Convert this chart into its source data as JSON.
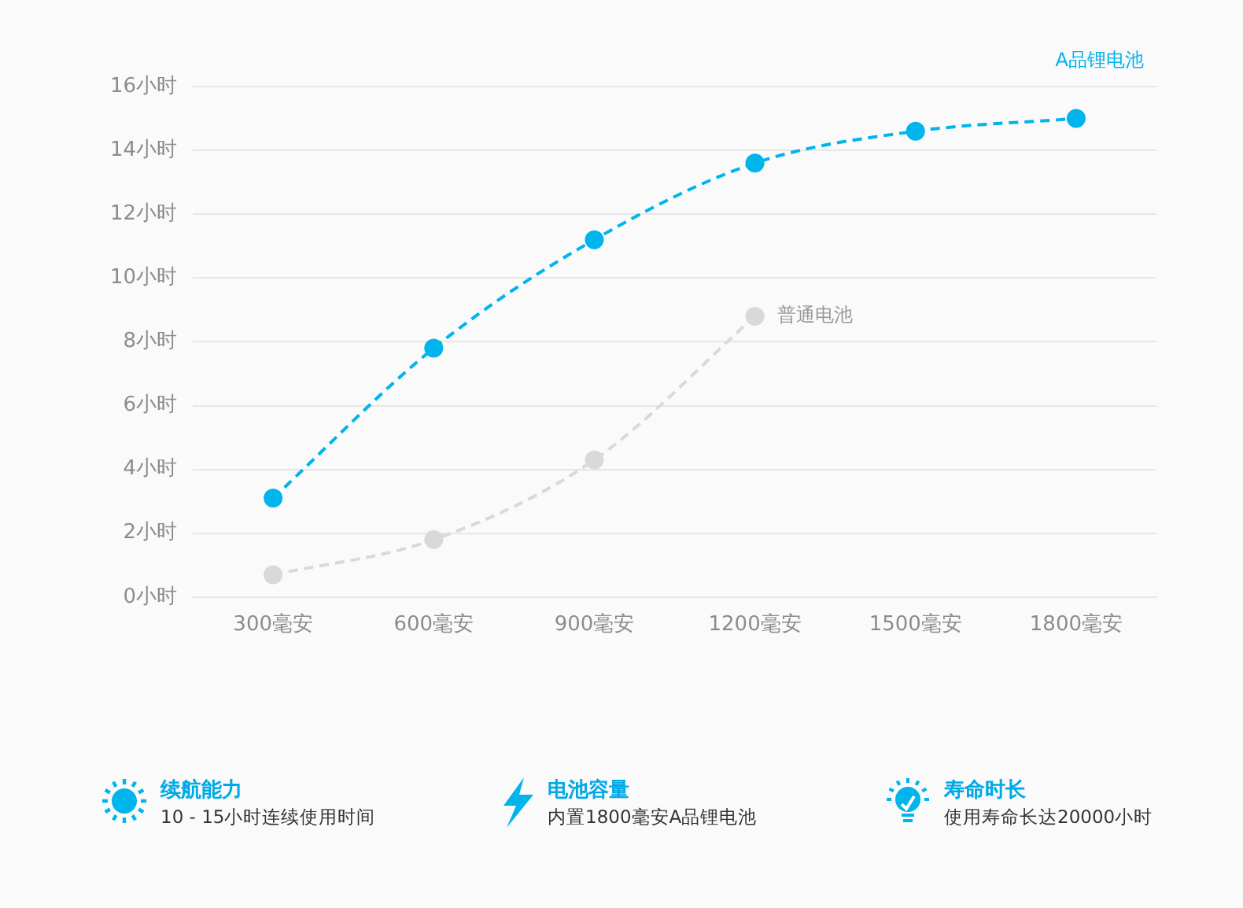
{
  "chart_data": {
    "type": "line",
    "categories": [
      "300毫安",
      "600毫安",
      "900毫安",
      "1200毫安",
      "1500毫安",
      "1800毫安"
    ],
    "series": [
      {
        "name": "A品锂电池",
        "color": "#00b4ec",
        "values": [
          3.1,
          7.8,
          11.2,
          13.6,
          14.6,
          15.0
        ]
      },
      {
        "name": "普通电池",
        "color": "#d9d9d9",
        "values": [
          0.7,
          1.8,
          4.3,
          8.8,
          null,
          null
        ]
      }
    ],
    "ylim": [
      0,
      16
    ],
    "yticks": [
      {
        "value": 0,
        "label": "0小时"
      },
      {
        "value": 2,
        "label": "2小时"
      },
      {
        "value": 4,
        "label": "4小时"
      },
      {
        "value": 6,
        "label": "6小时"
      },
      {
        "value": 8,
        "label": "8小时"
      },
      {
        "value": 10,
        "label": "10小时"
      },
      {
        "value": 12,
        "label": "12小时"
      },
      {
        "value": 14,
        "label": "14小时"
      },
      {
        "value": 16,
        "label": "16小时"
      }
    ],
    "grid": "y",
    "legend": false,
    "marker": "circle",
    "line_style": "dashed",
    "annotations": [
      "续航能力",
      "10 - 15小时连续使用时间",
      "电池容量",
      "内置1800毫安A品锂电池",
      "寿命时长",
      "使用寿命长达20000小时"
    ]
  }
}
